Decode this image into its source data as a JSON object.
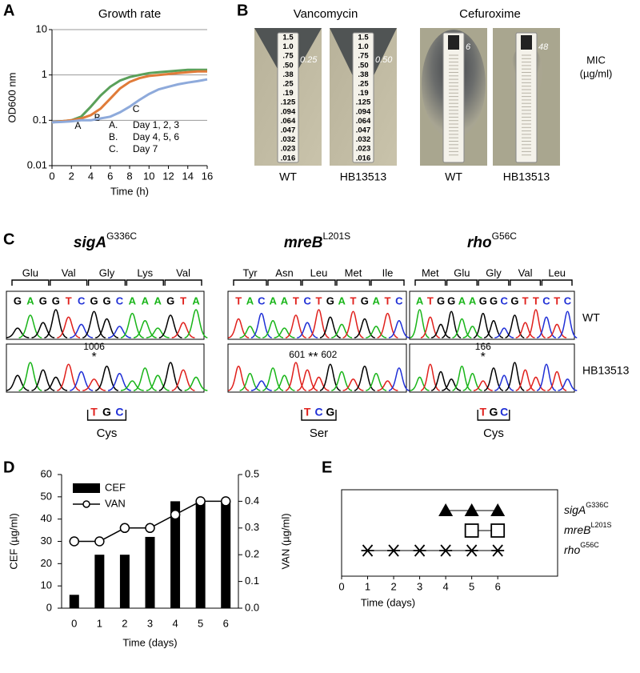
{
  "panel_labels": [
    "A",
    "B",
    "C",
    "D",
    "E"
  ],
  "chart_data": [
    {
      "type": "line",
      "title": "Growth rate",
      "xlabel": "Time (h)",
      "ylabel": "OD600 nm",
      "log_scale": true,
      "grid": true,
      "x": [
        0,
        1,
        2,
        3,
        4,
        5,
        6,
        7,
        8,
        9,
        10,
        11,
        12,
        13,
        14,
        15,
        16
      ],
      "xlim": [
        0,
        16
      ],
      "xticks": [
        0,
        2,
        4,
        6,
        8,
        10,
        12,
        14,
        16
      ],
      "ylim": [
        0.01,
        10
      ],
      "yticks": [
        0.01,
        0.1,
        1,
        10
      ],
      "series": [
        {
          "name": "A",
          "color": "#5aa05a",
          "values": [
            0.09,
            0.095,
            0.1,
            0.12,
            0.2,
            0.35,
            0.55,
            0.75,
            0.9,
            1.0,
            1.1,
            1.15,
            1.2,
            1.25,
            1.3,
            1.3,
            1.3
          ]
        },
        {
          "name": "B",
          "color": "#e07b39",
          "values": [
            0.09,
            0.095,
            0.1,
            0.11,
            0.13,
            0.18,
            0.3,
            0.5,
            0.7,
            0.85,
            0.95,
            1.0,
            1.05,
            1.1,
            1.15,
            1.2,
            1.2
          ]
        },
        {
          "name": "C",
          "color": "#8eaadb",
          "values": [
            0.09,
            0.092,
            0.095,
            0.1,
            0.1,
            0.11,
            0.12,
            0.15,
            0.2,
            0.28,
            0.38,
            0.48,
            0.55,
            0.62,
            0.68,
            0.73,
            0.8
          ]
        }
      ],
      "annotations": [
        [
          "A.",
          "Day 1, 2, 3"
        ],
        [
          "B.",
          "Day 4, 5, 6"
        ],
        [
          "C.",
          "Day 7"
        ]
      ]
    },
    {
      "type": "bar",
      "xlabel": "Time (days)",
      "ylabel": "CEF (µg/ml)",
      "y2label": "VAN (µg/ml)",
      "legend": "upper left",
      "categories": [
        "0",
        "1",
        "2",
        "3",
        "4",
        "5",
        "6"
      ],
      "ylim": [
        0,
        60
      ],
      "yticks": [
        0,
        10,
        20,
        30,
        40,
        50,
        60
      ],
      "y2lim": [
        0,
        0.5
      ],
      "y2ticks": [
        {
          "value": 0,
          "label": "0.0"
        },
        0.1,
        0.2,
        0.3,
        0.4,
        0.5
      ],
      "series": [
        {
          "name": "CEF",
          "color": "#000000",
          "mark": "bar",
          "values": [
            6,
            24,
            24,
            32,
            48,
            48,
            48
          ]
        },
        {
          "name": "VAN",
          "color": "#000000",
          "mark": "line",
          "axis": "y2",
          "values": [
            0.25,
            0.25,
            0.3,
            0.3,
            0.35,
            0.4,
            0.4
          ]
        }
      ]
    },
    {
      "type": "timeline",
      "xlabel": "Time (days)",
      "xlim": [
        0,
        8.3
      ],
      "xticks": [
        0,
        1,
        2,
        3,
        4,
        5,
        6
      ],
      "series": [
        {
          "gene": "sigA",
          "mutation": "G336C",
          "marker": "triangle",
          "color": "#000000",
          "x": [
            4,
            5,
            6
          ]
        },
        {
          "gene": "mreB",
          "mutation": "L201S",
          "marker": "square",
          "color": "#000000",
          "x": [
            5,
            6
          ]
        },
        {
          "gene": "rho",
          "mutation": "G56C",
          "marker": "asterisk",
          "color": "#000000",
          "x": [
            1,
            2,
            3,
            4,
            5,
            6
          ]
        }
      ]
    }
  ],
  "panel_b": {
    "mic_label": [
      "MIC",
      "(µg/ml)"
    ],
    "scale": [
      "1.5",
      "1.0",
      ".75",
      ".50",
      ".38",
      ".25",
      ".19",
      ".125",
      ".094",
      ".064",
      ".047",
      ".032",
      ".023",
      ".016"
    ],
    "antibiotics": [
      {
        "name": "Vancomycin",
        "strips": [
          {
            "strain": "WT",
            "mic": "0.25"
          },
          {
            "strain": "HB13513",
            "mic": "0.50"
          }
        ]
      },
      {
        "name": "Cefuroxime",
        "strips": [
          {
            "strain": "WT",
            "mic": "6"
          },
          {
            "strain": "HB13513",
            "mic": "48"
          }
        ]
      }
    ]
  },
  "panel_c": {
    "rows": [
      "WT",
      "HB13513"
    ],
    "genes": [
      {
        "gene": "sigA",
        "mutation": "G336C",
        "codons": [
          "Glu",
          "Val",
          "Gly",
          "Lys",
          "Val"
        ],
        "bases": [
          "G",
          "A",
          "G",
          "G",
          "T",
          "C",
          "G",
          "G",
          "C",
          "A",
          "A",
          "A",
          "G",
          "T",
          "A"
        ],
        "site_labels": [
          "1006"
        ],
        "site_marker": "*",
        "mutant_codon": [
          "T",
          "G",
          "C"
        ],
        "mutant_aa": "Cys"
      },
      {
        "gene": "mreB",
        "mutation": "L201S",
        "codons": [
          "Tyr",
          "Asn",
          "Leu",
          "Met",
          "Ile"
        ],
        "bases": [
          "T",
          "A",
          "C",
          "A",
          "A",
          "T",
          "C",
          "T",
          "G",
          "A",
          "T",
          "G",
          "A",
          "T",
          "C"
        ],
        "site_labels": [
          "601",
          "602"
        ],
        "site_marker": "**",
        "mutant_codon": [
          "T",
          "C",
          "G"
        ],
        "mutant_aa": "Ser"
      },
      {
        "gene": "rho",
        "mutation": "G56C",
        "codons": [
          "Met",
          "Glu",
          "Gly",
          "Val",
          "Leu"
        ],
        "bases": [
          "A",
          "T",
          "G",
          "G",
          "A",
          "A",
          "G",
          "G",
          "C",
          "G",
          "T",
          "T",
          "C",
          "T",
          "C"
        ],
        "site_labels": [
          "166"
        ],
        "site_marker": "*",
        "mutant_codon": [
          "T",
          "G",
          "C"
        ],
        "mutant_aa": "Cys"
      }
    ]
  }
}
